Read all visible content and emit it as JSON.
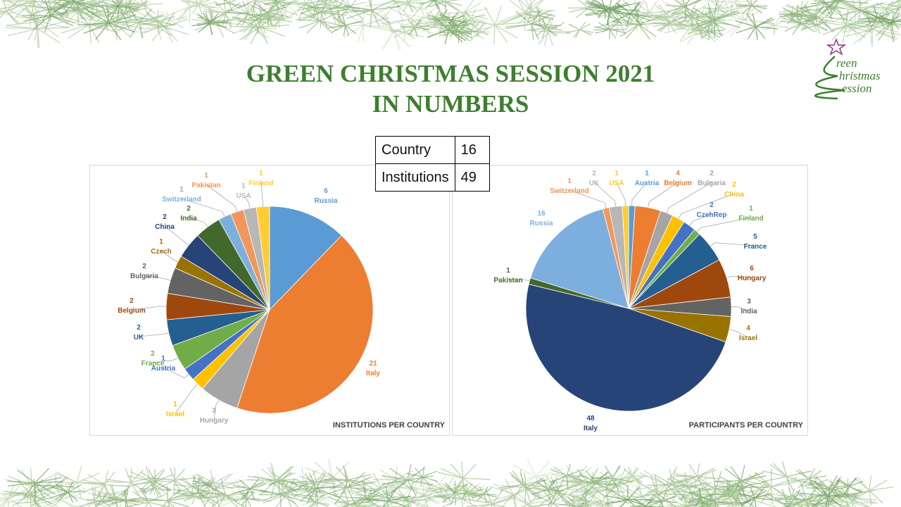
{
  "title": {
    "line1": "GREEN CHRISTMAS SESSION 2021",
    "line2": "IN NUMBERS"
  },
  "logo": {
    "line1": "reen",
    "line2": "hristmas",
    "line3": "ession",
    "star_color": "#9c2d8a",
    "text_color": "#3d7f2d"
  },
  "summary_table": [
    {
      "label": "Country",
      "value": "16"
    },
    {
      "label": "Institutions",
      "value": "49"
    }
  ],
  "chart_data": [
    {
      "type": "pie",
      "title": "INSTITUTIONS PER COUNTRY",
      "slices": [
        {
          "label": "Russia",
          "value": 6,
          "color": "#5b9bd5"
        },
        {
          "label": "Italy",
          "value": 21,
          "color": "#ed7d31"
        },
        {
          "label": "Hungary",
          "value": 3,
          "color": "#a5a5a5"
        },
        {
          "label": "Israel",
          "value": 1,
          "color": "#ffc000"
        },
        {
          "label": "Austria",
          "value": 1,
          "color": "#4472c4"
        },
        {
          "label": "France",
          "value": 2,
          "color": "#70ad47"
        },
        {
          "label": "UK",
          "value": 2,
          "color": "#255e91"
        },
        {
          "label": "Belgium",
          "value": 2,
          "color": "#9e480e"
        },
        {
          "label": "Bulgaria",
          "value": 2,
          "color": "#636363"
        },
        {
          "label": "Czech",
          "value": 1,
          "color": "#997300"
        },
        {
          "label": "China",
          "value": 2,
          "color": "#264478"
        },
        {
          "label": "India",
          "value": 2,
          "color": "#43682b"
        },
        {
          "label": "Switzerland",
          "value": 1,
          "color": "#7cafdd"
        },
        {
          "label": "Pakistan",
          "value": 1,
          "color": "#f1975a"
        },
        {
          "label": "USA",
          "value": 1,
          "color": "#b7b7b7"
        },
        {
          "label": "Finland",
          "value": 1,
          "color": "#ffcd33"
        }
      ]
    },
    {
      "type": "pie",
      "title": "PARTICIPANTS PER COUNTRY",
      "slices": [
        {
          "label": "Austria",
          "value": 1,
          "color": "#5b9bd5"
        },
        {
          "label": "Belgium",
          "value": 4,
          "color": "#ed7d31"
        },
        {
          "label": "Bulgaria",
          "value": 2,
          "color": "#a5a5a5"
        },
        {
          "label": "China",
          "value": 2,
          "color": "#ffc000"
        },
        {
          "label": "CzehRep",
          "value": 2,
          "color": "#4472c4"
        },
        {
          "label": "Finland",
          "value": 1,
          "color": "#70ad47"
        },
        {
          "label": "France",
          "value": 5,
          "color": "#255e91"
        },
        {
          "label": "Hungary",
          "value": 6,
          "color": "#9e480e"
        },
        {
          "label": "India",
          "value": 3,
          "color": "#636363"
        },
        {
          "label": "Israel",
          "value": 4,
          "color": "#997300"
        },
        {
          "label": "Italy",
          "value": 48,
          "color": "#264478"
        },
        {
          "label": "Pakistan",
          "value": 1,
          "color": "#43682b"
        },
        {
          "label": "Russia",
          "value": 16,
          "color": "#7cafdd"
        },
        {
          "label": "Switzerland",
          "value": 1,
          "color": "#f1975a"
        },
        {
          "label": "UK",
          "value": 2,
          "color": "#b7b7b7"
        },
        {
          "label": "USA",
          "value": 1,
          "color": "#ffcd33"
        }
      ]
    }
  ]
}
